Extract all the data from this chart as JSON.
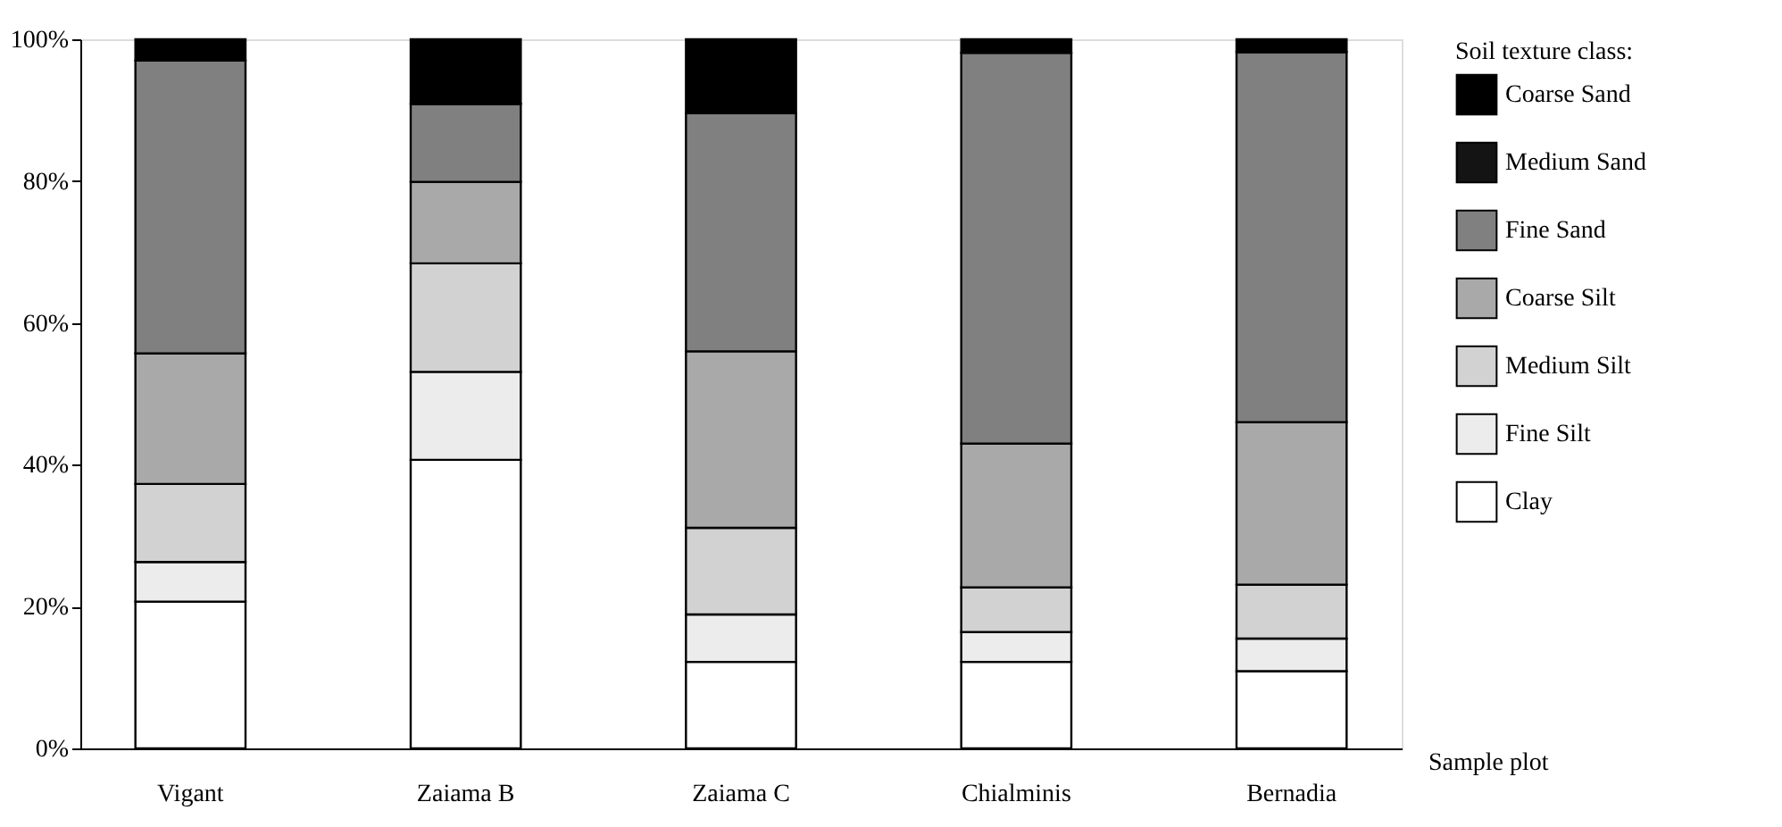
{
  "chart_data": {
    "type": "bar",
    "stacked": true,
    "xlabel": "Sample plot",
    "legend_title": "Soil texture class:",
    "legend": "right",
    "categories": [
      "Vigant",
      "Zaiama B",
      "Zaiama C",
      "Chialminis",
      "Bernadia"
    ],
    "ylim": [
      0,
      100
    ],
    "yticks": [
      {
        "value": 0,
        "label": "0%"
      },
      {
        "value": 20,
        "label": "20%"
      },
      {
        "value": 40,
        "label": "40%"
      },
      {
        "value": 60,
        "label": "60%"
      },
      {
        "value": 80,
        "label": "80%"
      },
      {
        "value": 100,
        "label": "100%"
      }
    ],
    "grid": false,
    "series": [
      {
        "name": "Clay",
        "color": "#ffffff",
        "values": [
          20.7,
          40.7,
          12.2,
          12.2,
          10.9
        ]
      },
      {
        "name": "Fine Silt",
        "color": "#ececec",
        "values": [
          5.6,
          12.4,
          6.7,
          4.2,
          4.6
        ]
      },
      {
        "name": "Medium Silt",
        "color": "#d2d2d2",
        "values": [
          11.0,
          15.3,
          12.2,
          6.3,
          7.6
        ]
      },
      {
        "name": "Coarse Silt",
        "color": "#a9a9a9",
        "values": [
          18.4,
          11.5,
          24.9,
          20.3,
          22.9
        ]
      },
      {
        "name": "Fine Sand",
        "color": "#808080",
        "values": [
          41.3,
          11.0,
          33.6,
          55.1,
          52.2
        ]
      },
      {
        "name": "Medium Sand",
        "color": "#141414",
        "values": [
          0,
          0,
          0,
          0,
          0
        ]
      },
      {
        "name": "Coarse Sand",
        "color": "#000000",
        "values": [
          3.0,
          9.1,
          10.4,
          1.9,
          1.8
        ]
      }
    ]
  }
}
